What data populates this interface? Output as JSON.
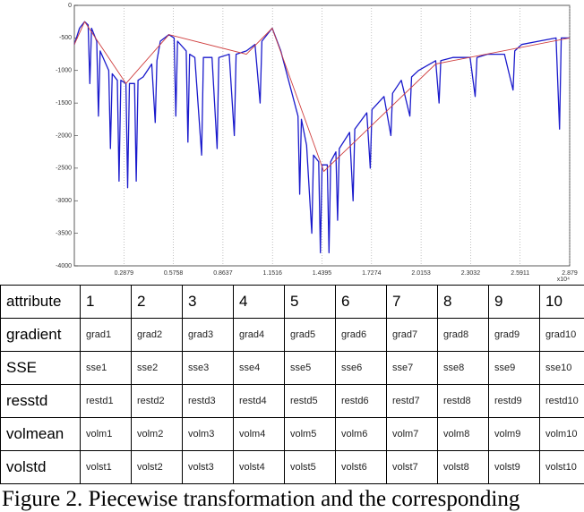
{
  "chart_data": {
    "type": "line",
    "xlim": [
      0,
      2.879
    ],
    "xticks": [
      0.2879,
      0.5758,
      0.8637,
      1.1516,
      1.4395,
      1.7274,
      2.0153,
      2.3032,
      2.5911,
      2.879
    ],
    "ylim": [
      -4000,
      0
    ],
    "yticks": [
      0,
      -500,
      -1000,
      -1500,
      -2000,
      -2500,
      -3000,
      -3500,
      -4000
    ],
    "x_multiplier": "x10⁴",
    "grid": "x",
    "series": [
      {
        "color": "#1a1acc",
        "x": [
          0.0,
          0.03,
          0.06,
          0.08,
          0.09,
          0.1,
          0.13,
          0.14,
          0.15,
          0.2,
          0.21,
          0.22,
          0.25,
          0.26,
          0.27,
          0.3,
          0.31,
          0.32,
          0.35,
          0.36,
          0.37,
          0.4,
          0.45,
          0.47,
          0.48,
          0.5,
          0.55,
          0.58,
          0.59,
          0.6,
          0.65,
          0.66,
          0.67,
          0.7,
          0.74,
          0.75,
          0.8,
          0.83,
          0.84,
          0.9,
          0.93,
          0.94,
          1.0,
          1.05,
          1.08,
          1.09,
          1.15,
          1.2,
          1.25,
          1.3,
          1.31,
          1.32,
          1.35,
          1.38,
          1.39,
          1.42,
          1.43,
          1.44,
          1.47,
          1.48,
          1.49,
          1.52,
          1.53,
          1.54,
          1.6,
          1.62,
          1.63,
          1.7,
          1.72,
          1.73,
          1.8,
          1.84,
          1.85,
          1.9,
          1.95,
          1.96,
          2.0,
          2.1,
          2.12,
          2.13,
          2.2,
          2.3,
          2.33,
          2.34,
          2.4,
          2.5,
          2.55,
          2.56,
          2.6,
          2.7,
          2.8,
          2.82,
          2.83,
          2.879
        ],
        "values": [
          -600,
          -350,
          -250,
          -300,
          -1200,
          -350,
          -550,
          -1700,
          -700,
          -1000,
          -2200,
          -1050,
          -1150,
          -2700,
          -1150,
          -1200,
          -2800,
          -1200,
          -1200,
          -2700,
          -1150,
          -1100,
          -900,
          -1800,
          -850,
          -550,
          -450,
          -500,
          -1700,
          -550,
          -700,
          -2100,
          -750,
          -800,
          -2300,
          -800,
          -800,
          -2200,
          -800,
          -750,
          -2000,
          -750,
          -700,
          -600,
          -1500,
          -550,
          -350,
          -700,
          -1200,
          -1700,
          -2900,
          -1750,
          -2150,
          -3500,
          -2300,
          -2400,
          -3800,
          -2450,
          -2450,
          -3800,
          -2400,
          -2250,
          -3300,
          -2200,
          -1950,
          -3000,
          -1900,
          -1650,
          -2500,
          -1600,
          -1400,
          -2000,
          -1350,
          -1150,
          -1700,
          -1100,
          -1000,
          -850,
          -1500,
          -850,
          -800,
          -800,
          -1400,
          -800,
          -750,
          -750,
          -1300,
          -700,
          -600,
          -550,
          -500,
          -1900,
          -500,
          -500
        ]
      },
      {
        "color": "#d04040",
        "x": [
          0,
          0.06,
          0.3,
          0.55,
          1.0,
          1.15,
          1.45,
          2.1,
          2.879
        ],
        "values": [
          -600,
          -250,
          -1200,
          -450,
          -750,
          -350,
          -2550,
          -900,
          -500
        ]
      }
    ]
  },
  "table": {
    "rows": [
      [
        "attribute",
        "1",
        "2",
        "3",
        "4",
        "5",
        "6",
        "7",
        "8",
        "9",
        "10"
      ],
      [
        "gradient",
        "grad1",
        "grad2",
        "grad3",
        "grad4",
        "grad5",
        "grad6",
        "grad7",
        "grad8",
        "grad9",
        "grad10"
      ],
      [
        "SSE",
        "sse1",
        "sse2",
        "sse3",
        "sse4",
        "sse5",
        "sse6",
        "sse7",
        "sse8",
        "sse9",
        "sse10"
      ],
      [
        "resstd",
        "restd1",
        "restd2",
        "restd3",
        "restd4",
        "restd5",
        "restd6",
        "restd7",
        "restd8",
        "restd9",
        "restd10"
      ],
      [
        "volmean",
        "volm1",
        "volm2",
        "volm3",
        "volm4",
        "volm5",
        "volm6",
        "volm7",
        "volm8",
        "volm9",
        "volm10"
      ],
      [
        "volstd",
        "volst1",
        "volst2",
        "volst3",
        "volst4",
        "volst5",
        "volst6",
        "volst7",
        "volst8",
        "volst9",
        "volst10"
      ]
    ]
  },
  "caption": "Figure 2. Piecewise transformation and the corresponding"
}
